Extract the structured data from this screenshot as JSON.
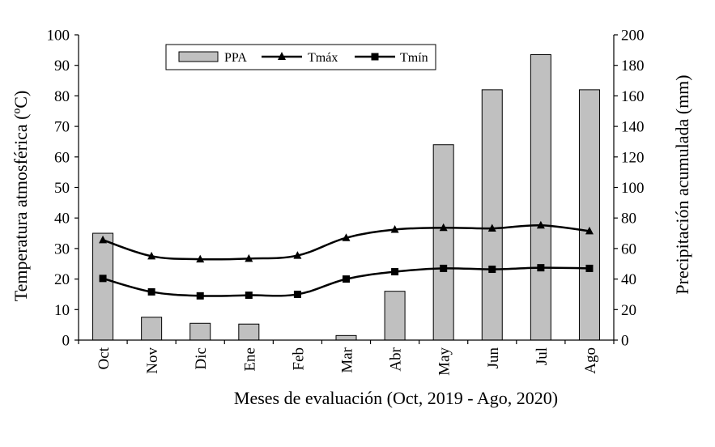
{
  "chart_data": {
    "type": "bar+line",
    "categories": [
      "Oct",
      "Nov",
      "Dic",
      "Ene",
      "Feb",
      "Mar",
      "Abr",
      "May",
      "Jun",
      "Jul",
      "Ago"
    ],
    "series": [
      {
        "name": "PPA",
        "type": "bar",
        "axis": "right",
        "values": [
          70,
          15,
          11,
          10.5,
          0,
          3,
          32,
          128,
          164,
          187,
          164
        ]
      },
      {
        "name": "Tmáx",
        "type": "line",
        "marker": "triangle",
        "axis": "left",
        "values": [
          32.8,
          27.5,
          26.5,
          26.7,
          27.7,
          33.5,
          36.2,
          36.8,
          36.6,
          37.6,
          35.7
        ]
      },
      {
        "name": "Tmín",
        "type": "line",
        "marker": "square",
        "axis": "left",
        "values": [
          20.2,
          15.8,
          14.5,
          14.7,
          15.0,
          20.0,
          22.4,
          23.5,
          23.2,
          23.7,
          23.5
        ]
      }
    ],
    "xlabel": "Meses de evaluación (Oct, 2019 - Ago, 2020)",
    "ylabel_left": "Temperatura atmosférica (ºC)",
    "ylabel_right": "Precipitación acumulada (mm)",
    "ylim_left": [
      0,
      100
    ],
    "ylim_right": [
      0,
      200
    ],
    "yticks_left": [
      "0",
      "10",
      "20",
      "30",
      "40",
      "50",
      "60",
      "70",
      "80",
      "90",
      "100"
    ],
    "yticks_right": [
      "0",
      "20",
      "40",
      "60",
      "80",
      "100",
      "120",
      "140",
      "160",
      "180",
      "200"
    ],
    "grid": false,
    "legend_position": "top-center",
    "colors": {
      "bar_fill": "#c0c0c0",
      "bar_stroke": "#000000",
      "line": "#000000"
    }
  }
}
